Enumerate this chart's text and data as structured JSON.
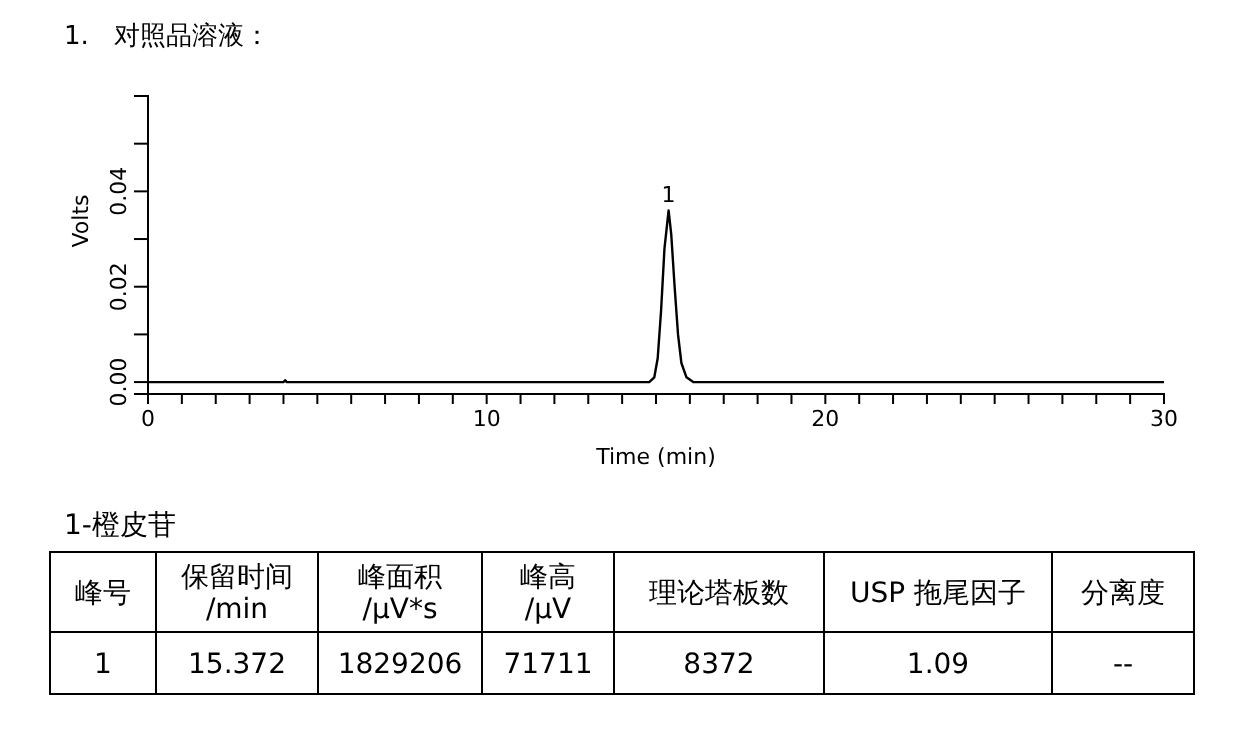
{
  "chart_data": {
    "type": "line",
    "title": "1.   对照品溶液：",
    "xlabel": "Time (min)",
    "ylabel": "Volts",
    "x": [
      0,
      4,
      4.05,
      4.1,
      14.8,
      14.95,
      15.05,
      15.15,
      15.25,
      15.372,
      15.45,
      15.55,
      15.65,
      15.75,
      15.9,
      16.1,
      30
    ],
    "series": [
      {
        "color": "#000000",
        "values": [
          0,
          0,
          0.0004,
          0,
          0,
          0.001,
          0.005,
          0.015,
          0.028,
          0.036,
          0.031,
          0.02,
          0.01,
          0.004,
          0.001,
          0,
          0
        ]
      }
    ],
    "xlim": [
      0,
      30
    ],
    "ylim": [
      -0.0025,
      0.06
    ],
    "xticks": [
      0,
      {
        "value": 1,
        "label": null
      },
      {
        "value": 2,
        "label": null
      },
      {
        "value": 3,
        "label": null
      },
      {
        "value": 4,
        "label": null
      },
      {
        "value": 5,
        "label": null
      },
      {
        "value": 6,
        "label": null
      },
      {
        "value": 7,
        "label": null
      },
      {
        "value": 8,
        "label": null
      },
      {
        "value": 9,
        "label": null
      },
      10,
      {
        "value": 11,
        "label": null
      },
      {
        "value": 12,
        "label": null
      },
      {
        "value": 13,
        "label": null
      },
      {
        "value": 14,
        "label": null
      },
      {
        "value": 15,
        "label": null
      },
      {
        "value": 16,
        "label": null
      },
      {
        "value": 17,
        "label": null
      },
      {
        "value": 18,
        "label": null
      },
      {
        "value": 19,
        "label": null
      },
      20,
      {
        "value": 21,
        "label": null
      },
      {
        "value": 22,
        "label": null
      },
      {
        "value": 23,
        "label": null
      },
      {
        "value": 24,
        "label": null
      },
      {
        "value": 25,
        "label": null
      },
      {
        "value": 26,
        "label": null
      },
      {
        "value": 27,
        "label": null
      },
      {
        "value": 28,
        "label": null
      },
      {
        "value": 29,
        "label": null
      },
      30
    ],
    "yticks": [
      {
        "value": 0,
        "label": "0.00"
      },
      {
        "value": 0.01,
        "label": null
      },
      {
        "value": 0.02,
        "label": "0.02"
      },
      {
        "value": 0.03,
        "label": null
      },
      {
        "value": 0.04,
        "label": "0.04"
      },
      {
        "value": 0.05,
        "label": null
      }
    ],
    "grid": false,
    "marker": "none",
    "line_style": "solid",
    "annotations": [
      {
        "text": "1",
        "x": 15.372,
        "y": 0.036
      },
      "1-橙皮苷",
      "峰号",
      "保留时间\n/min",
      "峰面积\n/µV*s",
      "峰高\n/µV",
      "理论塔板数",
      "USP 拖尾因子",
      "分离度",
      "1",
      "15.372",
      "1829206",
      "71711",
      "8372",
      "1.09",
      "--"
    ]
  }
}
